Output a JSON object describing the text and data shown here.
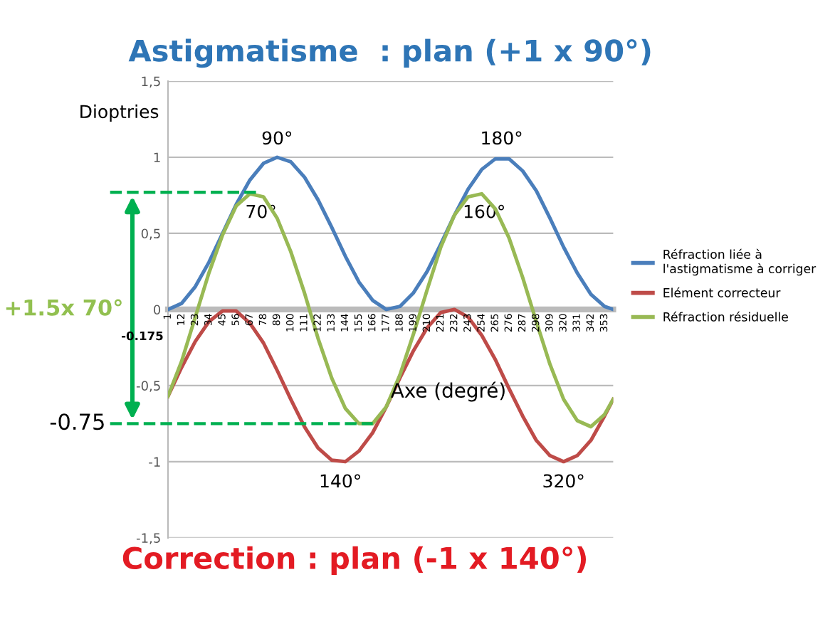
{
  "chart_data": {
    "type": "line",
    "title": "Astigmatisme  : plan (+1 x 90°)",
    "ylabel": "Dioptries",
    "xlabel": "Axe (degré)",
    "x": [
      1,
      12,
      23,
      34,
      45,
      56,
      67,
      78,
      89,
      100,
      111,
      122,
      133,
      144,
      155,
      166,
      177,
      188,
      199,
      210,
      221,
      232,
      243,
      254,
      265,
      276,
      287,
      298,
      309,
      320,
      331,
      342,
      353,
      360
    ],
    "series": [
      {
        "name": "Réfraction liée à\nl'astigmatisme à corriger",
        "color": "#4a7ebb",
        "values": [
          0.0,
          0.04,
          0.15,
          0.31,
          0.5,
          0.69,
          0.85,
          0.96,
          1.0,
          0.97,
          0.87,
          0.72,
          0.54,
          0.35,
          0.18,
          0.06,
          0.0,
          0.02,
          0.11,
          0.25,
          0.43,
          0.62,
          0.79,
          0.92,
          0.99,
          0.99,
          0.91,
          0.78,
          0.6,
          0.41,
          0.24,
          0.1,
          0.02,
          0.0
        ]
      },
      {
        "name": "Elément correcteur",
        "color": "#be4b48",
        "values": [
          -0.57,
          -0.38,
          -0.21,
          -0.08,
          -0.01,
          -0.01,
          -0.09,
          -0.22,
          -0.4,
          -0.59,
          -0.77,
          -0.91,
          -0.99,
          -1.0,
          -0.93,
          -0.81,
          -0.64,
          -0.45,
          -0.27,
          -0.12,
          -0.02,
          0.0,
          -0.05,
          -0.17,
          -0.33,
          -0.52,
          -0.7,
          -0.86,
          -0.96,
          -1.0,
          -0.96,
          -0.86,
          -0.7,
          -0.59
        ]
      },
      {
        "name": "Réfraction résiduelle",
        "color": "#98b954",
        "values": [
          -0.57,
          -0.34,
          -0.05,
          0.24,
          0.49,
          0.68,
          0.76,
          0.74,
          0.6,
          0.38,
          0.11,
          -0.19,
          -0.45,
          -0.65,
          -0.75,
          -0.75,
          -0.64,
          -0.43,
          -0.16,
          0.13,
          0.41,
          0.62,
          0.74,
          0.76,
          0.66,
          0.47,
          0.21,
          -0.08,
          -0.36,
          -0.59,
          -0.73,
          -0.77,
          -0.69,
          -0.59
        ]
      }
    ],
    "xlim": [
      1,
      360
    ],
    "xticks": [
      1,
      12,
      23,
      34,
      45,
      56,
      67,
      78,
      89,
      100,
      111,
      122,
      133,
      144,
      155,
      166,
      177,
      188,
      199,
      210,
      221,
      232,
      243,
      254,
      265,
      276,
      287,
      298,
      309,
      320,
      331,
      342,
      353
    ],
    "ylim": [
      -1.5,
      1.5
    ],
    "yticks": [
      {
        "value": -1.5,
        "label": "-1,5"
      },
      -1,
      {
        "value": -0.5,
        "label": "-0,5"
      },
      0,
      {
        "value": 0.5,
        "label": "0,5"
      },
      1,
      {
        "value": 1.5,
        "label": "1,5"
      }
    ],
    "grid": "y",
    "legend": "right",
    "marker": "none",
    "line_style": "solid",
    "ref_lines": [
      {
        "axis": "y",
        "value": 0.77,
        "color": "#00b050",
        "line_style": "dashed"
      },
      {
        "axis": "y",
        "value": -0.75,
        "label": "-0.75",
        "color": "#00b050",
        "line_style": "dashed"
      }
    ],
    "annotations": [
      "Correction : plan (-1 x 140°)",
      "+1.5x 70°",
      "-0.175",
      {
        "text": "90°",
        "x": 89,
        "y": 1.0
      },
      {
        "text": "180°",
        "x": 270,
        "y": 1.0
      },
      {
        "text": "70°",
        "x": 70,
        "y": 0.77
      },
      {
        "text": "160°",
        "x": 250,
        "y": 0.77
      },
      {
        "text": "140°",
        "x": 140,
        "y": -1.0
      },
      {
        "text": "320°",
        "x": 320,
        "y": -1.0
      }
    ]
  }
}
